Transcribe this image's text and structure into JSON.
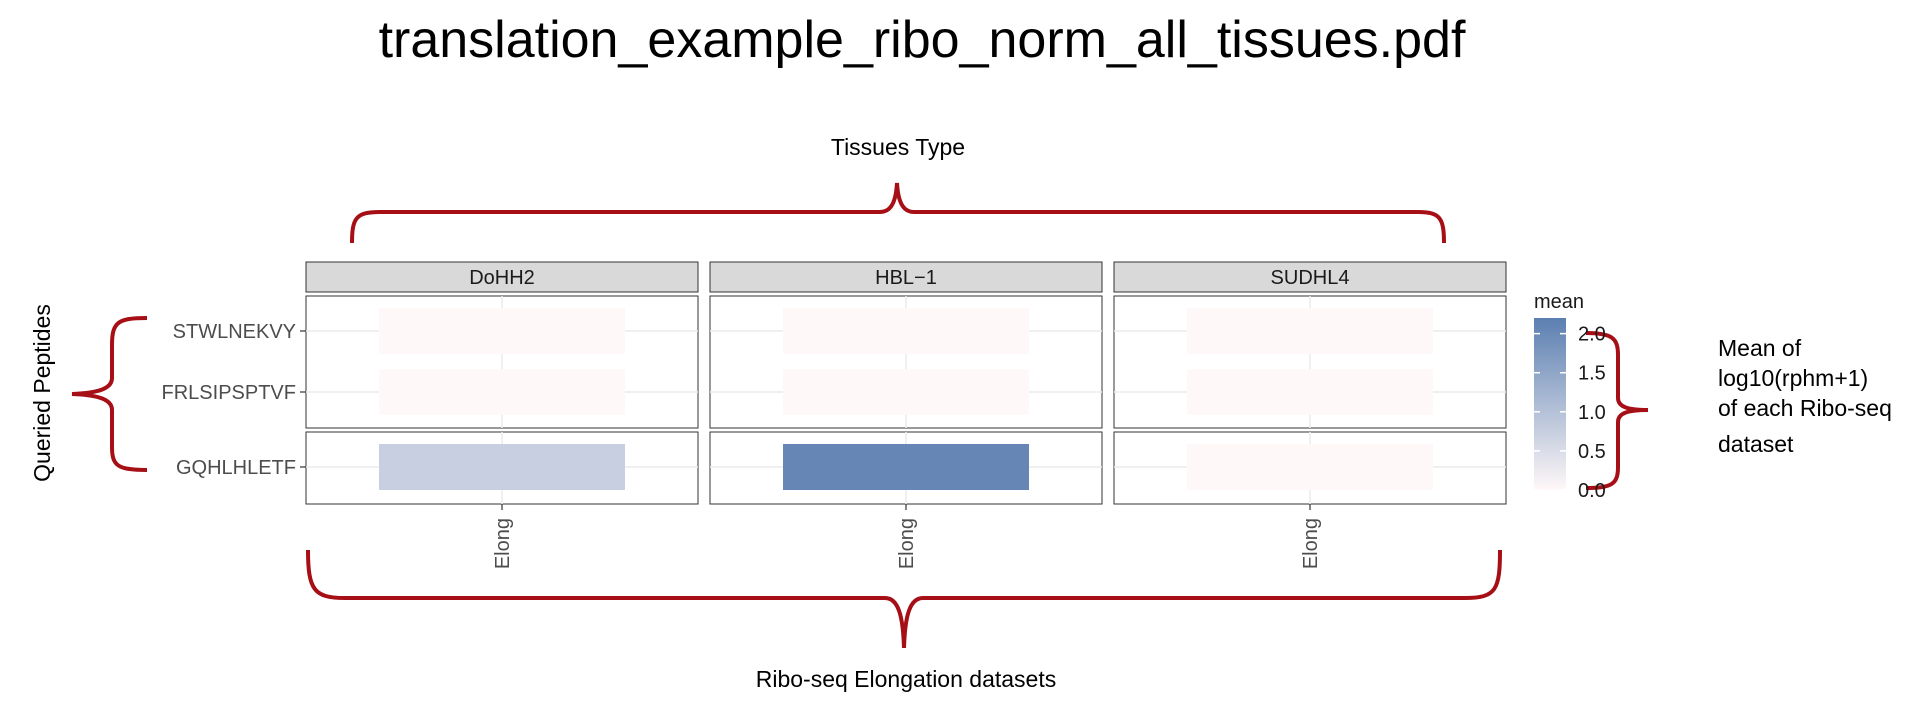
{
  "page": {
    "title": "translation_example_ribo_norm_all_tissues.pdf"
  },
  "annotations": {
    "top_label": "Tissues Type",
    "left_label": "Queried Peptides",
    "bottom_label": "Ribo-seq Elongation datasets",
    "right_label_lines": [
      "Mean of",
      "log10(rphm+1)",
      "of each Ribo-seq",
      "dataset"
    ],
    "bracket_color": "#a50f15"
  },
  "chart_data": {
    "type": "heatmap",
    "facets": [
      "DoHH2",
      "HBL−1",
      "SUDHL4"
    ],
    "x_category": "Elong",
    "row_groups": [
      [
        "STWLNEKVY",
        "FRLSIPSPTVF"
      ],
      [
        "GQHLHLETF"
      ]
    ],
    "rows": [
      "STWLNEKVY",
      "FRLSIPSPTVF",
      "GQHLHLETF"
    ],
    "values": [
      [
        0.0,
        0.0,
        0.0
      ],
      [
        0.0,
        0.0,
        0.0
      ],
      [
        0.75,
        2.05,
        0.0
      ]
    ],
    "legend": {
      "title": "mean",
      "ticks": [
        "2.0",
        "1.5",
        "1.0",
        "0.5",
        "0.0"
      ],
      "tick_values": [
        2.0,
        1.5,
        1.0,
        0.5,
        0.0
      ],
      "range": [
        0.0,
        2.2
      ],
      "low_color": "#fff8f8",
      "high_color": "#5b7fb1"
    },
    "strip_fill": "#d9d9d9",
    "grid": true
  }
}
